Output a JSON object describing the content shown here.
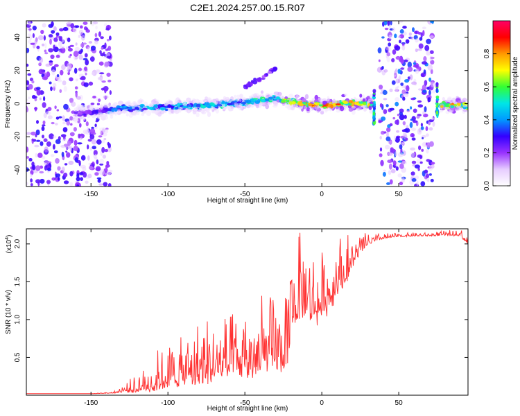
{
  "title": "C2E1.2024.257.00.15.R07",
  "chart_data": [
    {
      "type": "heatmap",
      "xlabel": "Height of straight line (km)",
      "ylabel": "Frequency (Hz)",
      "xlim": [
        -192,
        95
      ],
      "ylim": [
        -50,
        50
      ],
      "xticks": [
        -150,
        -100,
        -50,
        0,
        50
      ],
      "yticks": [
        -40,
        -20,
        0,
        20,
        40
      ],
      "colorbar": {
        "label": "Normalized spectral amplitude",
        "range": [
          0,
          1
        ],
        "ticks": [
          "0.0",
          "0.2",
          "0.4",
          "0.6",
          "0.8"
        ],
        "colormap": [
          "#ffffff",
          "#e6ccff",
          "#9933ff",
          "#3300ff",
          "#0099ff",
          "#00e6e6",
          "#33ff33",
          "#ffff00",
          "#ff9900",
          "#ff0000",
          "#ff0066"
        ]
      },
      "features": [
        {
          "kind": "noise",
          "x_range": [
            -192,
            -137
          ],
          "freq_range": [
            -50,
            50
          ],
          "amplitude": 0.25
        },
        {
          "kind": "ridge",
          "x": [
            -160,
            -130,
            -100,
            -70,
            -50,
            -30,
            -15,
            0,
            15,
            33
          ],
          "freq": [
            -6,
            -3,
            -2,
            -1,
            1,
            3,
            0,
            -1,
            0,
            0
          ],
          "amplitude": [
            0.25,
            0.45,
            0.5,
            0.55,
            0.55,
            0.65,
            0.85,
            0.9,
            0.9,
            0.9
          ]
        },
        {
          "kind": "branch",
          "x": [
            -50,
            -45,
            -40,
            -35,
            -30
          ],
          "freq": [
            10,
            13,
            15,
            18,
            21
          ],
          "amplitude": 0.25
        },
        {
          "kind": "spike",
          "x": 34,
          "freq_range": [
            -12,
            8
          ],
          "amplitude": 0.5
        },
        {
          "kind": "noise",
          "x_range": [
            37,
            73
          ],
          "freq_range": [
            -50,
            50
          ],
          "amplitude": 0.3
        },
        {
          "kind": "spike",
          "x": 75,
          "freq_range": [
            -8,
            12
          ],
          "amplitude": 0.5
        },
        {
          "kind": "ridge",
          "x": [
            77,
            85,
            95
          ],
          "freq": [
            -1,
            -1,
            -1
          ],
          "amplitude": [
            0.8,
            0.95,
            0.7
          ]
        }
      ]
    },
    {
      "type": "line",
      "xlabel": "Height of straight line (km)",
      "ylabel": "SNR (10 * v/v)",
      "y_multiplier": "(x10",
      "y_multiplier_exp": "4",
      "xlim": [
        -192,
        95
      ],
      "ylim": [
        0,
        2.2
      ],
      "xticks": [
        -150,
        -100,
        -50,
        0,
        50
      ],
      "yticks": [
        "0.5",
        "1.0",
        "1.5",
        "2.0"
      ],
      "color": "#ff3333",
      "series": [
        {
          "x": [
            -192,
            -150,
            -135,
            -128,
            -120,
            -110,
            -100,
            -90,
            -80,
            -70,
            -60,
            -50,
            -40,
            -30,
            -25,
            -22,
            -20,
            -15,
            -10,
            -5,
            0,
            5,
            10,
            15,
            20,
            25,
            30,
            35,
            40,
            50,
            60,
            70,
            80,
            90,
            95
          ],
          "y": [
            0.02,
            0.02,
            0.03,
            0.06,
            0.08,
            0.12,
            0.18,
            0.24,
            0.28,
            0.33,
            0.36,
            0.38,
            0.42,
            0.5,
            0.45,
            0.55,
            1.0,
            1.2,
            1.25,
            1.1,
            1.15,
            1.25,
            1.45,
            1.55,
            1.75,
            1.9,
            2.0,
            2.05,
            2.08,
            2.1,
            2.11,
            2.11,
            2.12,
            2.12,
            2.0
          ],
          "noise": [
            0,
            0,
            0.01,
            0.05,
            0.12,
            0.2,
            0.28,
            0.3,
            0.38,
            0.38,
            0.4,
            0.42,
            0.42,
            0.42,
            0.4,
            0.4,
            0.45,
            0.5,
            0.5,
            0.45,
            0.42,
            0.4,
            0.35,
            0.28,
            0.2,
            0.12,
            0.06,
            0.04,
            0.03,
            0.02,
            0.02,
            0.02,
            0.03,
            0.04,
            0.05
          ]
        }
      ]
    }
  ]
}
